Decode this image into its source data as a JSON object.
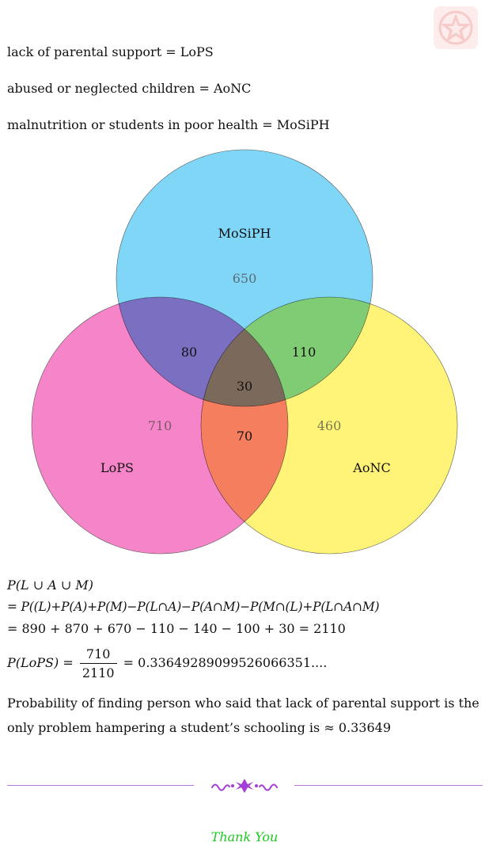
{
  "definitions": [
    {
      "text": "lack of parental support = LoPS"
    },
    {
      "text": "abused or neglected children = AoNC"
    },
    {
      "text": "malnutrition or students in poor health = MoSiPH"
    }
  ],
  "venn": {
    "sets": [
      {
        "label": "MoSiPH",
        "color": "#5ccbf4"
      },
      {
        "label": "LoPS",
        "color": "#f15bb5"
      },
      {
        "label": "AoNC",
        "color": "#fff04b"
      }
    ],
    "regions": {
      "only_mosiph": "650",
      "only_lops": "710",
      "only_aonc": "460",
      "lops_mosiph": "80",
      "mosiph_aonc": "110",
      "lops_aonc": "70",
      "all_three": "30"
    }
  },
  "formula": {
    "line1": "P(L ∪ A ∪ M)",
    "line2": "= P((L)+P(A)+P(M)−P(L∩A)−P(A∩M)−P(M∩(L)+P(L∩A∩M)",
    "line3": "= 890 + 870 + 670 − 110 − 140 − 100 + 30 = 2110",
    "prob_lhs": "P(LoPS) =",
    "prob_num": "710",
    "prob_den": "2110",
    "prob_rhs": "= 0.33649289099526066351...."
  },
  "conclusion": "Probability of finding person who said that lack of parental support is the only problem hampering a student’s schooling is ≈ 0.33649",
  "footer": {
    "thanks": "Thank You",
    "accent": "#b67ad8",
    "thanks_color": "#1ec81e"
  }
}
